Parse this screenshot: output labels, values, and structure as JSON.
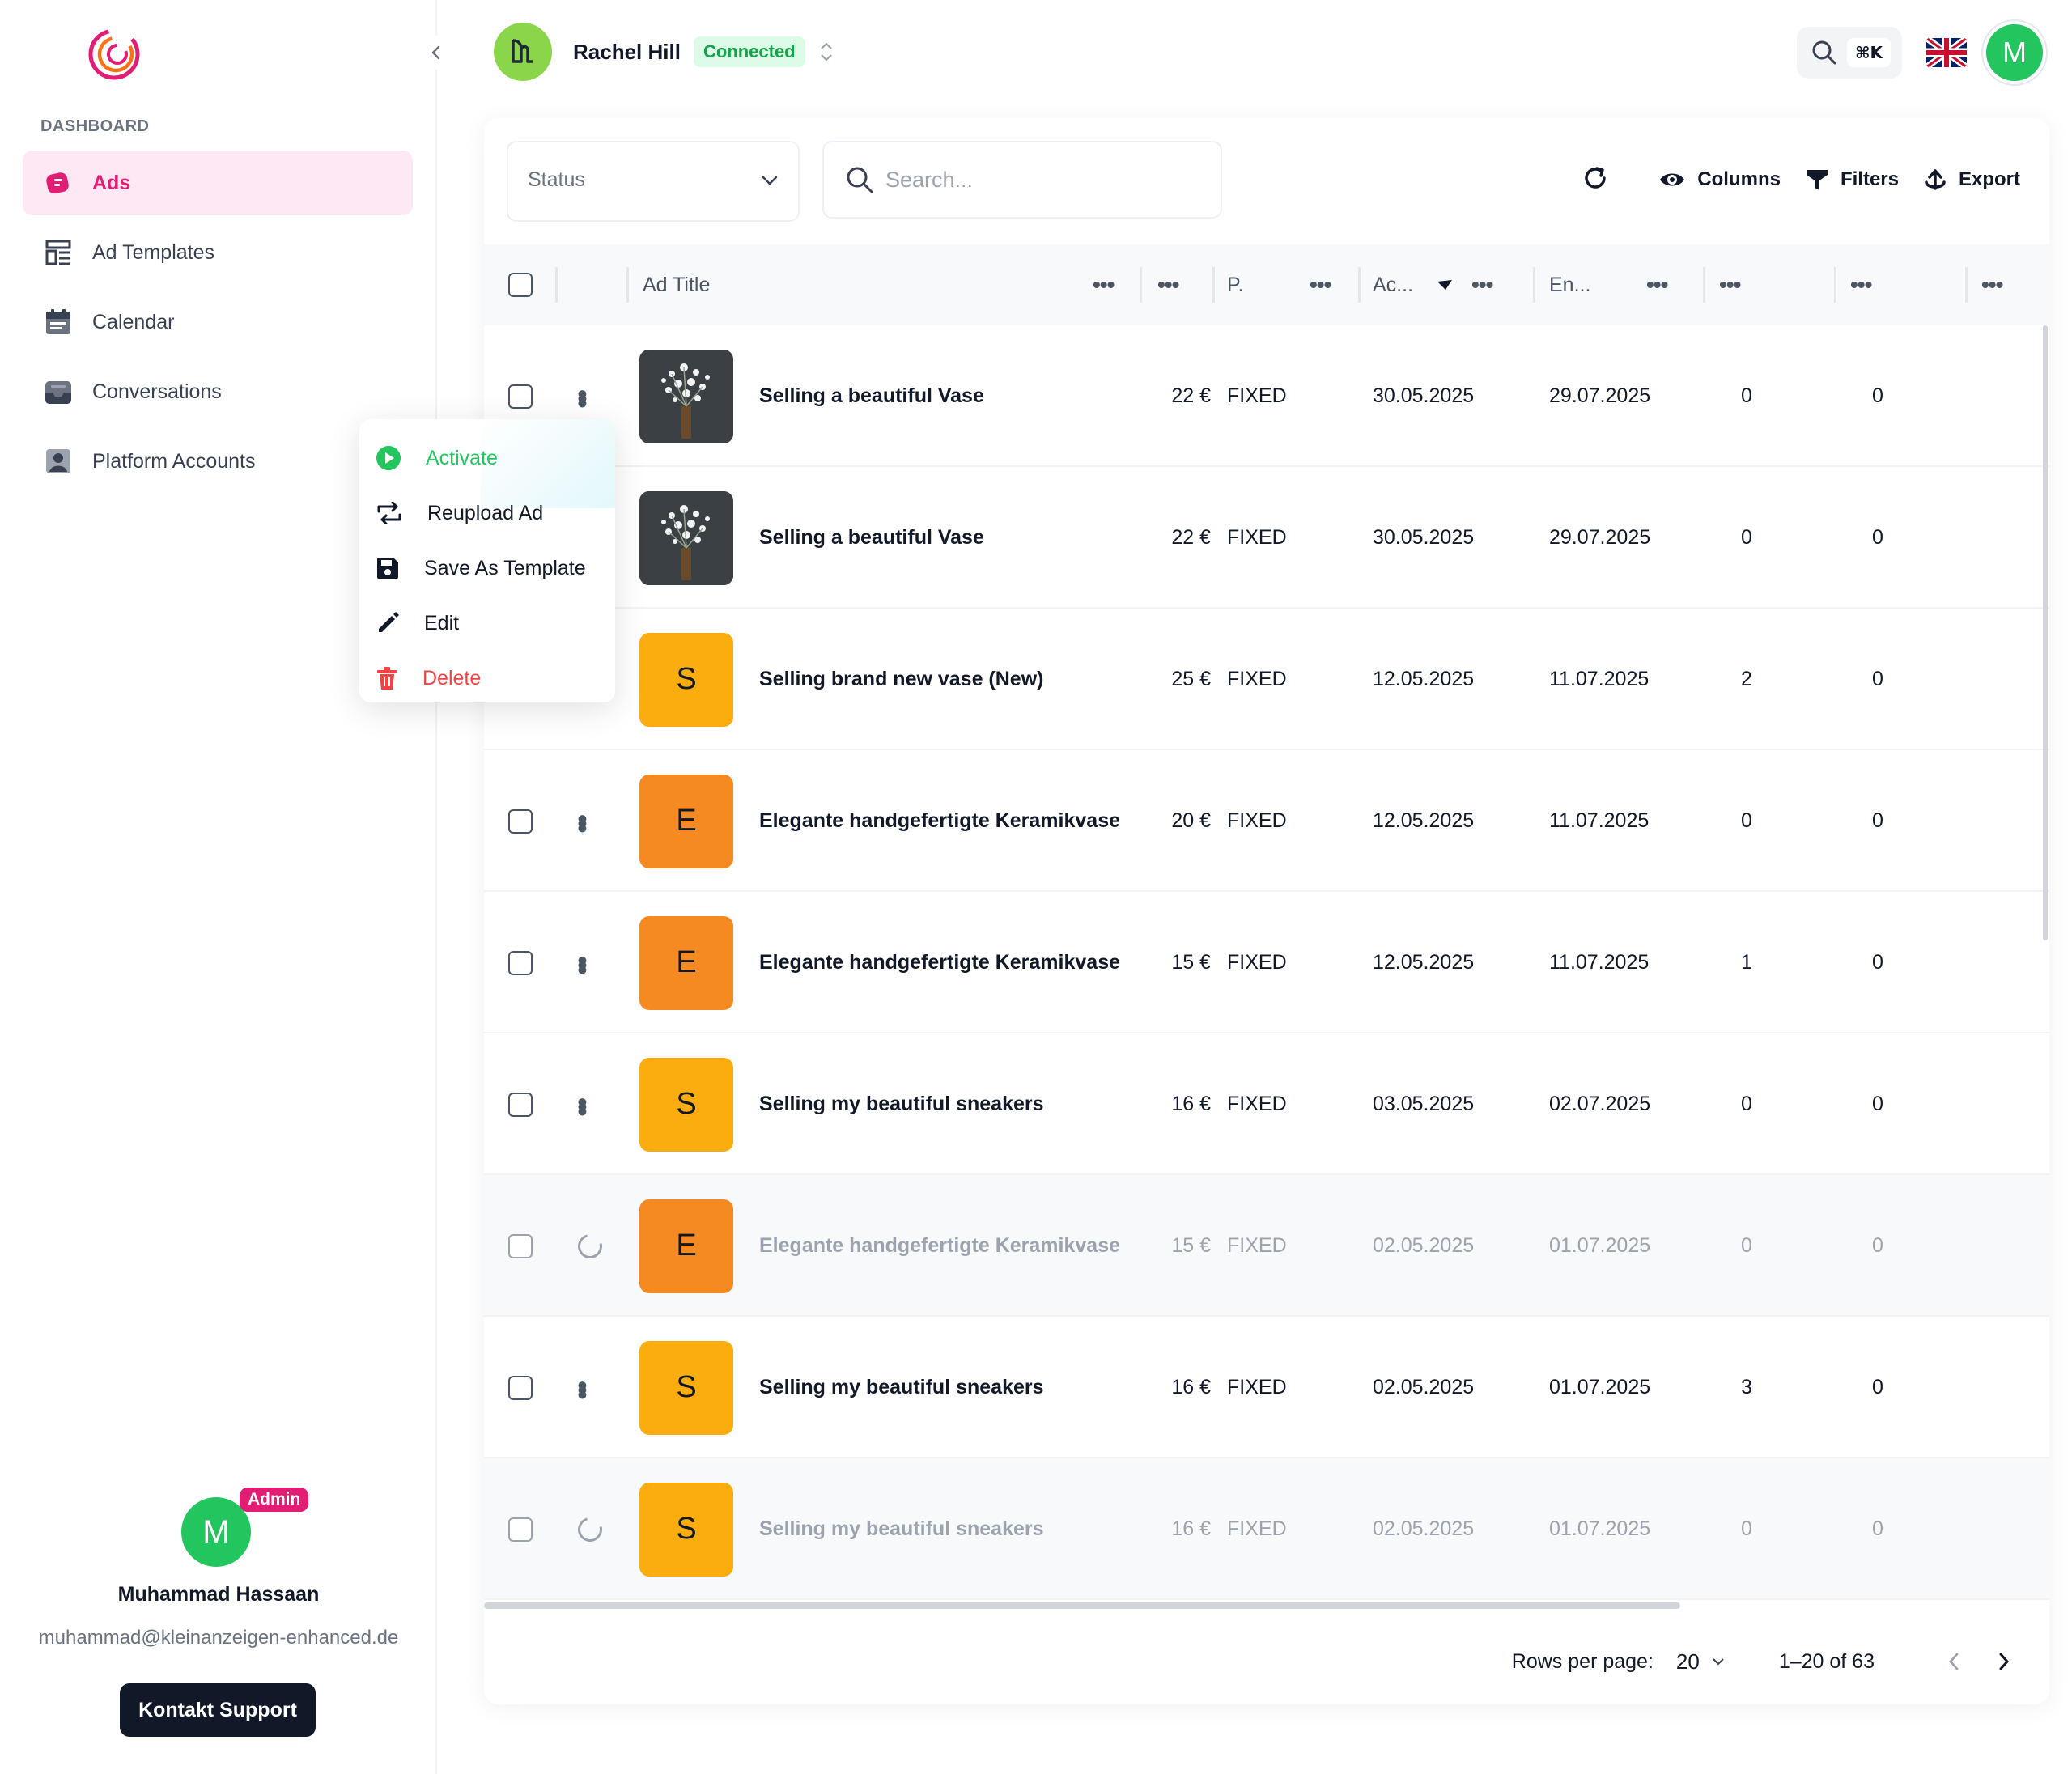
{
  "sidebar": {
    "section_label": "DASHBOARD",
    "items": [
      {
        "label": "Ads"
      },
      {
        "label": "Ad Templates"
      },
      {
        "label": "Calendar"
      },
      {
        "label": "Conversations"
      },
      {
        "label": "Platform Accounts"
      }
    ],
    "profile": {
      "initial": "M",
      "badge": "Admin",
      "name": "Muhammad Hassaan",
      "email": "muhammad@kleinanzeigen-enhanced.de",
      "support_label": "Kontakt Support"
    }
  },
  "header": {
    "account_name": "Rachel Hill",
    "account_status": "Connected",
    "shortcut": "⌘K",
    "user_initial": "M"
  },
  "toolbar": {
    "status_placeholder": "Status",
    "search_placeholder": "Search...",
    "columns_label": "Columns",
    "filters_label": "Filters",
    "export_label": "Export"
  },
  "table": {
    "headers": {
      "title": "Ad Title",
      "price": "P.",
      "active": "Ac...",
      "end": "En..."
    },
    "rows": [
      {
        "thumb_type": "photo",
        "thumb_letter": "",
        "title": "Selling a beautiful Vase",
        "price": "22 €",
        "price_type": "FIXED",
        "active": "30.05.2025",
        "end": "29.07.2025",
        "c1": "0",
        "c2": "0",
        "loading": false
      },
      {
        "thumb_type": "photo",
        "thumb_letter": "",
        "title": "Selling a beautiful Vase",
        "price": "22 €",
        "price_type": "FIXED",
        "active": "30.05.2025",
        "end": "29.07.2025",
        "c1": "0",
        "c2": "0",
        "loading": false
      },
      {
        "thumb_type": "letter",
        "thumb_letter": "S",
        "thumb_color": "#fbad0f",
        "title": "Selling brand new vase (New)",
        "price": "25 €",
        "price_type": "FIXED",
        "active": "12.05.2025",
        "end": "11.07.2025",
        "c1": "2",
        "c2": "0",
        "loading": false
      },
      {
        "thumb_type": "letter",
        "thumb_letter": "E",
        "thumb_color": "#f58a23",
        "title": "Elegante handgefertigte Keramikvase",
        "price": "20 €",
        "price_type": "FIXED",
        "active": "12.05.2025",
        "end": "11.07.2025",
        "c1": "0",
        "c2": "0",
        "loading": false
      },
      {
        "thumb_type": "letter",
        "thumb_letter": "E",
        "thumb_color": "#f58a23",
        "title": "Elegante handgefertigte Keramikvase",
        "price": "15 €",
        "price_type": "FIXED",
        "active": "12.05.2025",
        "end": "11.07.2025",
        "c1": "1",
        "c2": "0",
        "loading": false
      },
      {
        "thumb_type": "letter",
        "thumb_letter": "S",
        "thumb_color": "#fbad0f",
        "title": "Selling my beautiful sneakers",
        "price": "16 €",
        "price_type": "FIXED",
        "active": "03.05.2025",
        "end": "02.07.2025",
        "c1": "0",
        "c2": "0",
        "loading": false
      },
      {
        "thumb_type": "letter",
        "thumb_letter": "E",
        "thumb_color": "#f58a23",
        "title": "Elegante handgefertigte Keramikvase",
        "price": "15 €",
        "price_type": "FIXED",
        "active": "02.05.2025",
        "end": "01.07.2025",
        "c1": "0",
        "c2": "0",
        "loading": true
      },
      {
        "thumb_type": "letter",
        "thumb_letter": "S",
        "thumb_color": "#fbad0f",
        "title": "Selling my beautiful sneakers",
        "price": "16 €",
        "price_type": "FIXED",
        "active": "02.05.2025",
        "end": "01.07.2025",
        "c1": "3",
        "c2": "0",
        "loading": false
      },
      {
        "thumb_type": "letter",
        "thumb_letter": "S",
        "thumb_color": "#fbad0f",
        "title": "Selling my beautiful sneakers",
        "price": "16 €",
        "price_type": "FIXED",
        "active": "02.05.2025",
        "end": "01.07.2025",
        "c1": "0",
        "c2": "0",
        "loading": true
      }
    ]
  },
  "pagination": {
    "rows_per_page_label": "Rows per page:",
    "rows_per_page": "20",
    "range": "1–20 of 63"
  },
  "context_menu": {
    "items": [
      {
        "label": "Activate"
      },
      {
        "label": "Reupload Ad"
      },
      {
        "label": "Save As Template"
      },
      {
        "label": "Edit"
      },
      {
        "label": "Delete"
      }
    ]
  },
  "colors": {
    "accent": "#e11d74",
    "accent_bg": "#fde8f3",
    "success": "#22c55e",
    "danger": "#ef4444",
    "orange": "#f58a23",
    "amber": "#fbad0f"
  },
  "icons": {
    "logo": "app-logo-icon",
    "ads": "megaphone-icon",
    "ad_templates": "template-icon",
    "calendar": "calendar-icon",
    "conversations": "inbox-icon",
    "platform_accounts": "user-card-icon",
    "search": "search-icon",
    "refresh": "refresh-icon",
    "columns": "eye-icon",
    "filters": "filter-icon",
    "export": "export-icon"
  }
}
